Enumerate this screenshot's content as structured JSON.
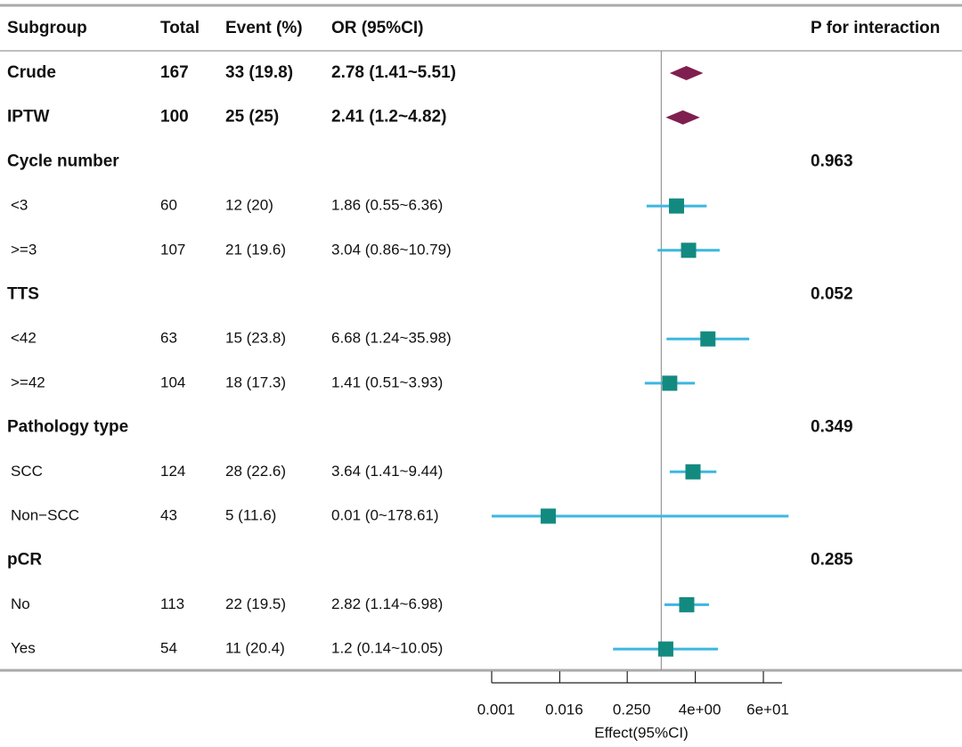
{
  "chart_data": {
    "type": "forest",
    "columns": [
      "Subgroup",
      "Total",
      "Event (%)",
      "OR (95%CI)",
      "P for interaction"
    ],
    "overall": [
      {
        "subgroup": "Crude",
        "total": 167,
        "event": "33 (19.8)",
        "or_text": "2.78 (1.41~5.51)",
        "or": 2.78,
        "lower": 1.41,
        "upper": 5.51
      },
      {
        "subgroup": "IPTW",
        "total": 100,
        "event": "25 (25)",
        "or_text": "2.41 (1.2~4.82)",
        "or": 2.41,
        "lower": 1.2,
        "upper": 4.82
      }
    ],
    "groups": [
      {
        "name": "Cycle number",
        "p": "0.963",
        "rows": [
          {
            "subgroup": "<3",
            "total": 60,
            "event": "12 (20)",
            "or_text": "1.86 (0.55~6.36)",
            "or": 1.86,
            "lower": 0.55,
            "upper": 6.36
          },
          {
            "subgroup": ">=3",
            "total": 107,
            "event": "21 (19.6)",
            "or_text": "3.04 (0.86~10.79)",
            "or": 3.04,
            "lower": 0.86,
            "upper": 10.79
          }
        ]
      },
      {
        "name": "TTS",
        "p": "0.052",
        "rows": [
          {
            "subgroup": "<42",
            "total": 63,
            "event": "15 (23.8)",
            "or_text": "6.68 (1.24~35.98)",
            "or": 6.68,
            "lower": 1.24,
            "upper": 35.98
          },
          {
            "subgroup": ">=42",
            "total": 104,
            "event": "18 (17.3)",
            "or_text": "1.41 (0.51~3.93)",
            "or": 1.41,
            "lower": 0.51,
            "upper": 3.93
          }
        ]
      },
      {
        "name": "Pathology type",
        "p": "0.349",
        "rows": [
          {
            "subgroup": "SCC",
            "total": 124,
            "event": "28 (22.6)",
            "or_text": "3.64 (1.41~9.44)",
            "or": 3.64,
            "lower": 1.41,
            "upper": 9.44
          },
          {
            "subgroup": "Non−SCC",
            "total": 43,
            "event": "5 (11.6)",
            "or_text": "0.01 (0~178.61)",
            "or": 0.01,
            "lower": 0,
            "upper": 178.61
          }
        ]
      },
      {
        "name": "pCR",
        "p": "0.285",
        "rows": [
          {
            "subgroup": "No",
            "total": 113,
            "event": "22 (19.5)",
            "or_text": "2.82 (1.14~6.98)",
            "or": 2.82,
            "lower": 1.14,
            "upper": 6.98
          },
          {
            "subgroup": "Yes",
            "total": 54,
            "event": "11 (20.4)",
            "or_text": "1.2 (0.14~10.05)",
            "or": 1.2,
            "lower": 0.14,
            "upper": 10.05
          }
        ]
      }
    ],
    "x_label": "Effect(95%CI)",
    "log_scale": true,
    "xlim": [
      0.001,
      137
    ],
    "xticks": [
      0.001,
      0.016,
      {
        "value": 0.25,
        "label": "0.250"
      },
      {
        "value": 4,
        "label": "4e+00"
      },
      {
        "value": 64,
        "label": "6e+01"
      }
    ],
    "ref_line": 1,
    "diamond_color": "#7e1f4f",
    "square_color": "#138a80",
    "ci_color": "#3cb7e0"
  }
}
